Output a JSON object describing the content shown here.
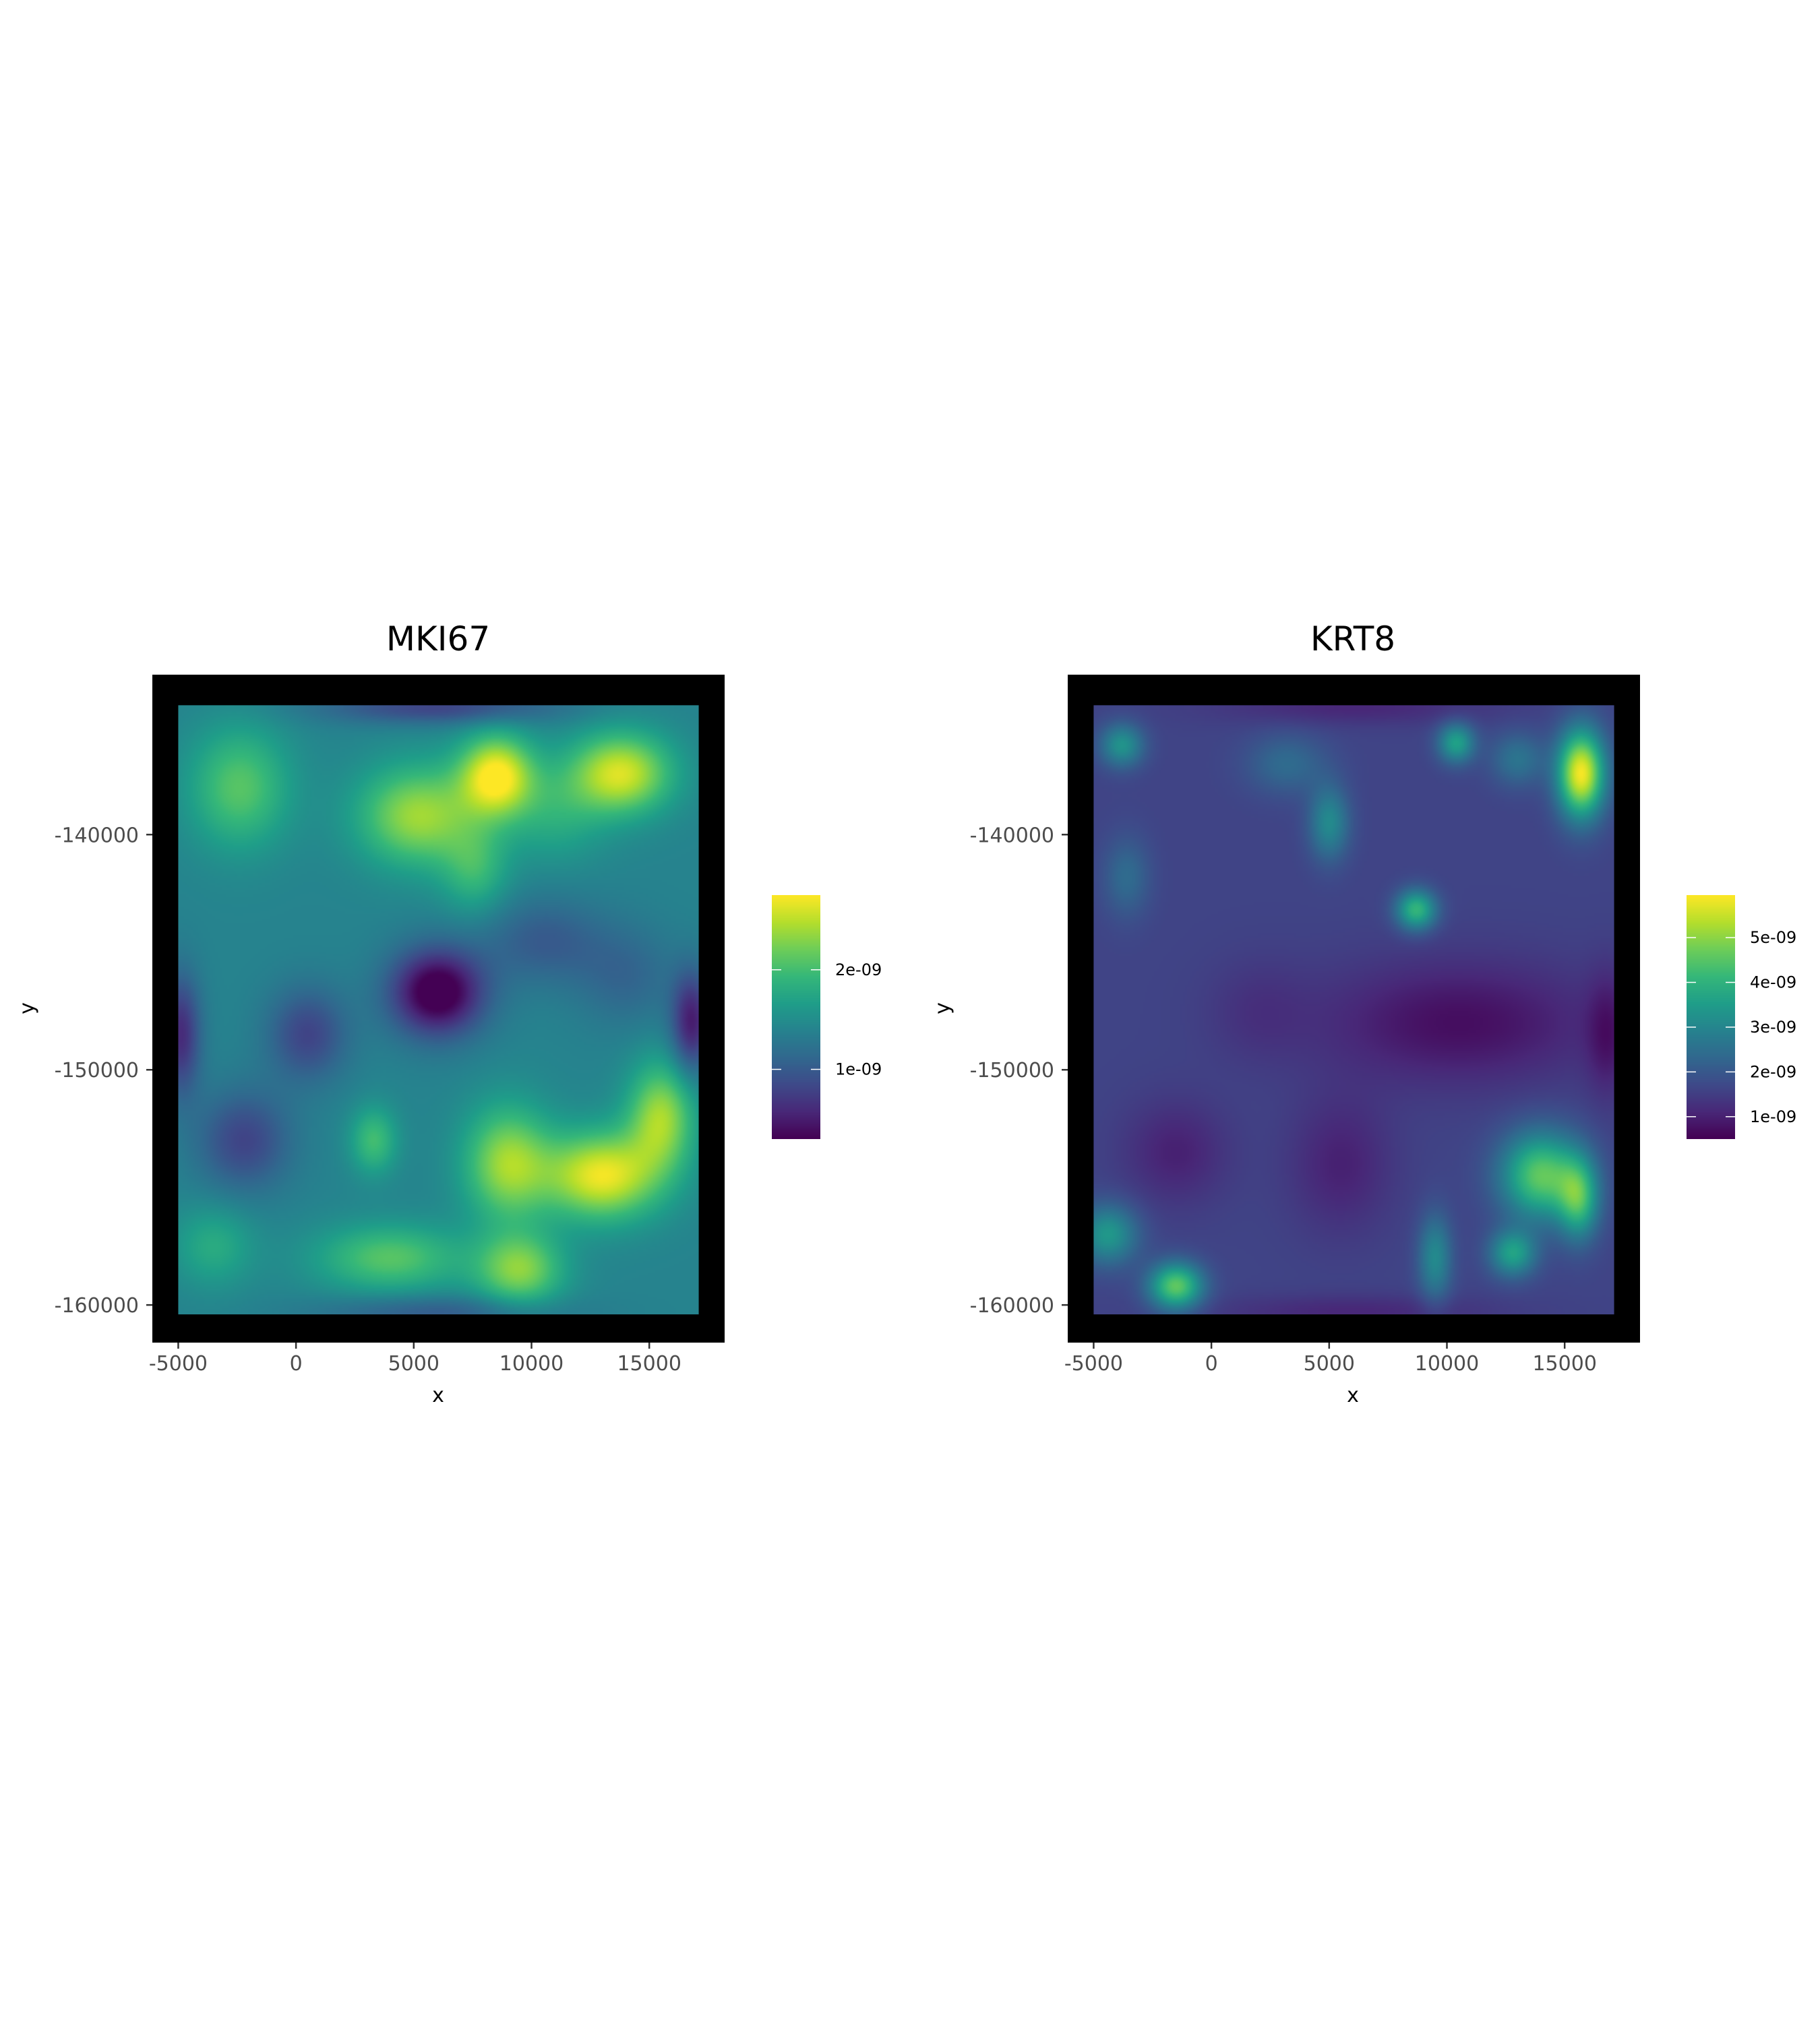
{
  "chart_data": [
    {
      "type": "heatmap",
      "title": "MKI67",
      "xlabel": "x",
      "ylabel": "y",
      "x_ticks": [
        -5000,
        0,
        5000,
        10000,
        15000
      ],
      "x_tick_labels": [
        "-5000",
        "0",
        "5000",
        "10000",
        "15000"
      ],
      "y_ticks": [
        -140000,
        -150000,
        -160000
      ],
      "y_tick_labels": [
        "-140000",
        "-150000",
        "-160000"
      ],
      "xlim": [
        -6100,
        18200
      ],
      "ylim": [
        -161600,
        -133200
      ],
      "data_extent": {
        "x": [
          -5000,
          17100
        ],
        "y": [
          -160400,
          -134500
        ]
      },
      "background": "#000000",
      "colorscale": "viridis",
      "colorbar": {
        "range": [
          3e-10,
          2.75e-09
        ],
        "ticks": [
          1e-09,
          2e-09
        ],
        "tick_labels": [
          "1e-09",
          "2e-09"
        ]
      },
      "base_value": 1.4e-09,
      "blobs": [
        {
          "x": 8500,
          "y": -137500,
          "sx": 1100,
          "sy": 1200,
          "v": 1.35e-09
        },
        {
          "x": 13800,
          "y": -137400,
          "sx": 1500,
          "sy": 1200,
          "v": 1.2e-09
        },
        {
          "x": 5200,
          "y": -139200,
          "sx": 1800,
          "sy": 1500,
          "v": 1e-09
        },
        {
          "x": -2400,
          "y": -138000,
          "sx": 1500,
          "sy": 1800,
          "v": 7e-10
        },
        {
          "x": 7600,
          "y": -141500,
          "sx": 1000,
          "sy": 1300,
          "v": 5e-10
        },
        {
          "x": 11000,
          "y": -139000,
          "sx": 1500,
          "sy": 1500,
          "v": 4e-10
        },
        {
          "x": 6000,
          "y": -146700,
          "sx": 1400,
          "sy": 1300,
          "v": -1.3e-09
        },
        {
          "x": 500,
          "y": -148500,
          "sx": 1200,
          "sy": 1400,
          "v": -6e-10
        },
        {
          "x": -2200,
          "y": -153000,
          "sx": 1400,
          "sy": 1500,
          "v": -6e-10
        },
        {
          "x": 10500,
          "y": -144500,
          "sx": 1800,
          "sy": 1300,
          "v": -4e-10
        },
        {
          "x": 14000,
          "y": -146000,
          "sx": 1500,
          "sy": 1500,
          "v": -3e-10
        },
        {
          "x": 9000,
          "y": -154000,
          "sx": 1300,
          "sy": 1700,
          "v": 1e-09
        },
        {
          "x": 13000,
          "y": -154500,
          "sx": 1700,
          "sy": 1300,
          "v": 1.3e-09
        },
        {
          "x": 15500,
          "y": -152000,
          "sx": 1000,
          "sy": 1600,
          "v": 1e-09
        },
        {
          "x": 9500,
          "y": -158500,
          "sx": 1300,
          "sy": 1100,
          "v": 9e-10
        },
        {
          "x": 4000,
          "y": -158000,
          "sx": 2200,
          "sy": 1000,
          "v": 7e-10
        },
        {
          "x": 3300,
          "y": -153000,
          "sx": 700,
          "sy": 1000,
          "v": 6e-10
        },
        {
          "x": -3500,
          "y": -157500,
          "sx": 1200,
          "sy": 1200,
          "v": 4e-10
        },
        {
          "x": 16800,
          "y": -148000,
          "sx": 600,
          "sy": 1500,
          "v": -9e-10
        },
        {
          "x": -4900,
          "y": -148500,
          "sx": 600,
          "sy": 1800,
          "v": -8e-10
        },
        {
          "x": 6000,
          "y": -134600,
          "sx": 3500,
          "sy": 500,
          "v": -6e-10
        },
        {
          "x": 6000,
          "y": -160300,
          "sx": 3500,
          "sy": 500,
          "v": -4e-10
        }
      ]
    },
    {
      "type": "heatmap",
      "title": "KRT8",
      "xlabel": "x",
      "ylabel": "y",
      "x_ticks": [
        -5000,
        0,
        5000,
        10000,
        15000
      ],
      "x_tick_labels": [
        "-5000",
        "0",
        "5000",
        "10000",
        "15000"
      ],
      "y_ticks": [
        -140000,
        -150000,
        -160000
      ],
      "y_tick_labels": [
        "-140000",
        "-150000",
        "-160000"
      ],
      "xlim": [
        -6100,
        18200
      ],
      "ylim": [
        -161600,
        -133200
      ],
      "data_extent": {
        "x": [
          -5000,
          17100
        ],
        "y": [
          -160400,
          -134500
        ]
      },
      "background": "#000000",
      "colorscale": "viridis",
      "colorbar": {
        "range": [
          5e-10,
          5.95e-09
        ],
        "ticks": [
          1e-09,
          2e-09,
          3e-09,
          4e-09,
          5e-09
        ],
        "tick_labels": [
          "1e-09",
          "2e-09",
          "3e-09",
          "4e-09",
          "5e-09"
        ]
      },
      "base_value": 1.6e-09,
      "blobs": [
        {
          "x": 15700,
          "y": -137400,
          "sx": 700,
          "sy": 1300,
          "v": 4.3e-09
        },
        {
          "x": 14000,
          "y": -154500,
          "sx": 1200,
          "sy": 1300,
          "v": 3e-09
        },
        {
          "x": 15600,
          "y": -155500,
          "sx": 600,
          "sy": 1200,
          "v": 2.3e-09
        },
        {
          "x": 12800,
          "y": -157800,
          "sx": 700,
          "sy": 700,
          "v": 2e-09
        },
        {
          "x": -1500,
          "y": -159200,
          "sx": 800,
          "sy": 700,
          "v": 3e-09
        },
        {
          "x": -4400,
          "y": -157000,
          "sx": 900,
          "sy": 900,
          "v": 1.8e-09
        },
        {
          "x": 8700,
          "y": -143200,
          "sx": 600,
          "sy": 600,
          "v": 2.5e-09
        },
        {
          "x": 10400,
          "y": -136100,
          "sx": 550,
          "sy": 600,
          "v": 2e-09
        },
        {
          "x": -3800,
          "y": -136200,
          "sx": 650,
          "sy": 650,
          "v": 1.7e-09
        },
        {
          "x": 5000,
          "y": -139500,
          "sx": 600,
          "sy": 1100,
          "v": 1.5e-09
        },
        {
          "x": 3200,
          "y": -137000,
          "sx": 1200,
          "sy": 900,
          "v": 8e-10
        },
        {
          "x": 9500,
          "y": -158000,
          "sx": 500,
          "sy": 1300,
          "v": 1.5e-09
        },
        {
          "x": -3600,
          "y": -141800,
          "sx": 700,
          "sy": 1200,
          "v": 8e-10
        },
        {
          "x": 13000,
          "y": -136800,
          "sx": 800,
          "sy": 800,
          "v": 1e-09
        },
        {
          "x": 10500,
          "y": -148000,
          "sx": 4000,
          "sy": 1800,
          "v": -9e-10
        },
        {
          "x": 5500,
          "y": -154000,
          "sx": 1500,
          "sy": 2000,
          "v": -6e-10
        },
        {
          "x": -1500,
          "y": -153500,
          "sx": 1500,
          "sy": 1500,
          "v": -6e-10
        },
        {
          "x": 2000,
          "y": -147500,
          "sx": 1500,
          "sy": 1500,
          "v": -3e-10
        },
        {
          "x": 16800,
          "y": -148500,
          "sx": 600,
          "sy": 1800,
          "v": -7e-10
        },
        {
          "x": 6000,
          "y": -134600,
          "sx": 4000,
          "sy": 500,
          "v": -5e-10
        },
        {
          "x": 6000,
          "y": -160300,
          "sx": 4000,
          "sy": 500,
          "v": -5e-10
        }
      ]
    }
  ]
}
